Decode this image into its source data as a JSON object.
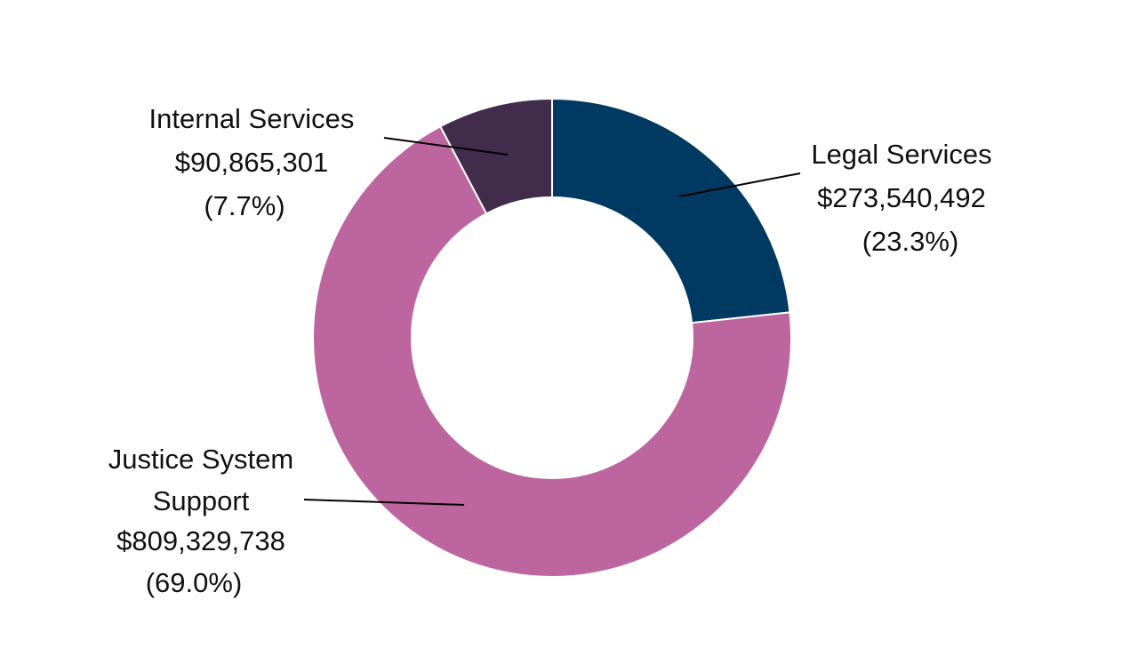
{
  "chart_data": {
    "type": "pie",
    "style": "donut",
    "title": "",
    "colors": {
      "legal_services": "#003a63",
      "justice_system_support": "#bd659f",
      "internal_services": "#412c4c",
      "background": "#ffffff"
    },
    "slices": [
      {
        "key": "legal_services",
        "category_lines": [
          "Legal Services"
        ],
        "value": 273540492,
        "value_label": "$273,540,492",
        "percent": 23.3,
        "percent_label": "(23.3%)"
      },
      {
        "key": "justice_system_support",
        "category_lines": [
          "Justice System",
          "Support"
        ],
        "value": 809329738,
        "value_label": "$809,329,738",
        "percent": 69.0,
        "percent_label": "(69.0%)"
      },
      {
        "key": "internal_services",
        "category_lines": [
          "Internal Services"
        ],
        "value": 90865301,
        "value_label": "$90,865,301",
        "percent": 7.7,
        "percent_label": "(7.7%)"
      }
    ],
    "legend": "none"
  }
}
